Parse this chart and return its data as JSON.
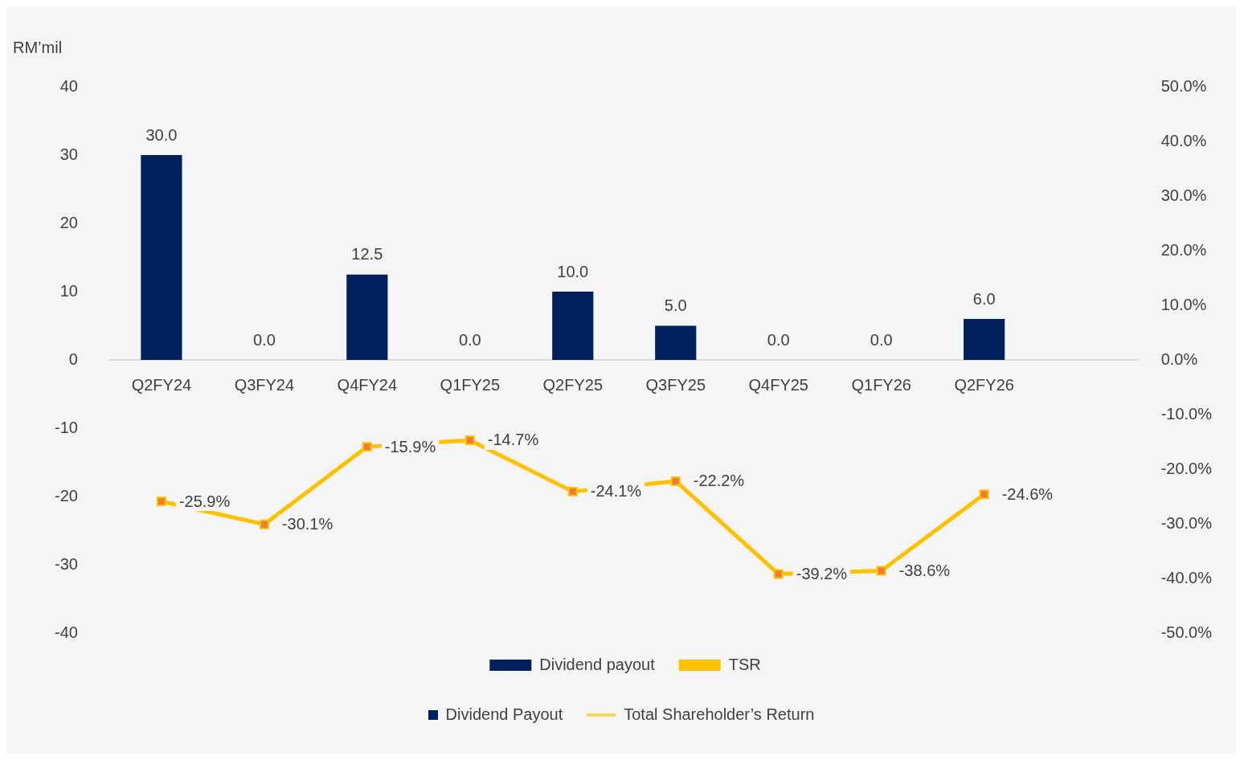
{
  "chart_data": {
    "type": "bar",
    "ylabel": "RM’mil",
    "categories": [
      "Q2FY24",
      "Q3FY24",
      "Q4FY24",
      "Q1FY25",
      "Q2FY25",
      "Q3FY25",
      "Q4FY25",
      "Q1FY26",
      "Q2FY26",
      null
    ],
    "series": [
      {
        "name": "Dividend payout",
        "color": "#002060",
        "values": [
          30,
          0,
          12.5,
          0,
          10,
          5,
          0,
          0,
          6,
          null
        ],
        "value_labels": [
          "30.0",
          "0.0",
          "12.5",
          "0.0",
          "10.0",
          "5.0",
          "0.0",
          "0.0",
          "6.0",
          null
        ]
      },
      {
        "name": "TSR",
        "type": "line",
        "axis": "y2",
        "color": "#ffc000",
        "values": [
          -25.9,
          -30.1,
          -15.9,
          -14.7,
          -24.1,
          -22.2,
          -39.2,
          -38.6,
          -24.6,
          null
        ],
        "value_labels": [
          "-25.9%",
          "-30.1%",
          "-15.9%",
          "-14.7%",
          "-24.1%",
          "-22.2%",
          "-39.2%",
          "-38.6%",
          "-24.6%",
          null
        ]
      }
    ],
    "ylim": [
      -40,
      40
    ],
    "yticks": [
      -40,
      -30,
      -20,
      -10,
      0,
      10,
      20,
      30,
      40
    ],
    "y2lim": [
      -50,
      50
    ],
    "y2ticks": [
      {
        "value": -50,
        "label": "-50.0%"
      },
      {
        "value": -40,
        "label": "-40.0%"
      },
      {
        "value": -30,
        "label": "-30.0%"
      },
      {
        "value": -20,
        "label": "-20.0%"
      },
      {
        "value": -10,
        "label": "-10.0%"
      },
      {
        "value": 0,
        "label": "0.0%"
      },
      {
        "value": 10,
        "label": "10.0%"
      },
      {
        "value": 20,
        "label": "20.0%"
      },
      {
        "value": 30,
        "label": "30.0%"
      },
      {
        "value": 40,
        "label": "40.0%"
      },
      {
        "value": 50,
        "label": "50.0%"
      }
    ],
    "grid": false,
    "legend": "bottom",
    "marker": "square",
    "annotations": [
      "Dividend Payout",
      "Total Shareholder’s Return"
    ]
  }
}
